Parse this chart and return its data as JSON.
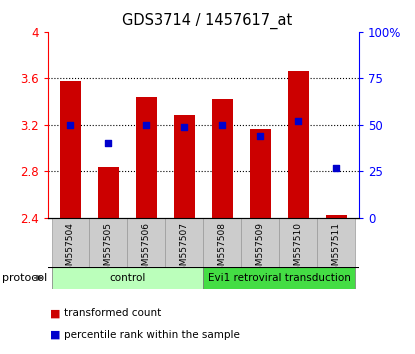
{
  "title": "GDS3714 / 1457617_at",
  "samples": [
    "GSM557504",
    "GSM557505",
    "GSM557506",
    "GSM557507",
    "GSM557508",
    "GSM557509",
    "GSM557510",
    "GSM557511"
  ],
  "transformed_count": [
    3.58,
    2.84,
    3.44,
    3.28,
    3.42,
    3.16,
    3.66,
    2.42
  ],
  "percentile_rank": [
    50,
    40,
    50,
    49,
    50,
    44,
    52,
    27
  ],
  "bar_bottom": 2.4,
  "ylim_left": [
    2.4,
    4.0
  ],
  "ylim_right": [
    0,
    100
  ],
  "yticks_left": [
    2.4,
    2.8,
    3.2,
    3.6,
    4.0
  ],
  "ytick_labels_left": [
    "2.4",
    "2.8",
    "3.2",
    "3.6",
    "4"
  ],
  "yticks_right": [
    0,
    25,
    50,
    75,
    100
  ],
  "ytick_labels_right": [
    "0",
    "25",
    "50",
    "75",
    "100%"
  ],
  "bar_color": "#cc0000",
  "dot_color": "#0000cc",
  "tick_area_color": "#cccccc",
  "protocol_groups": [
    {
      "label": "control",
      "start": 0,
      "end": 4,
      "color": "#bbffbb"
    },
    {
      "label": "Evi1 retroviral transduction",
      "start": 4,
      "end": 8,
      "color": "#44dd44"
    }
  ],
  "protocol_label": "protocol",
  "legend_items": [
    {
      "color": "#cc0000",
      "label": "transformed count"
    },
    {
      "color": "#0000cc",
      "label": "percentile rank within the sample"
    }
  ]
}
